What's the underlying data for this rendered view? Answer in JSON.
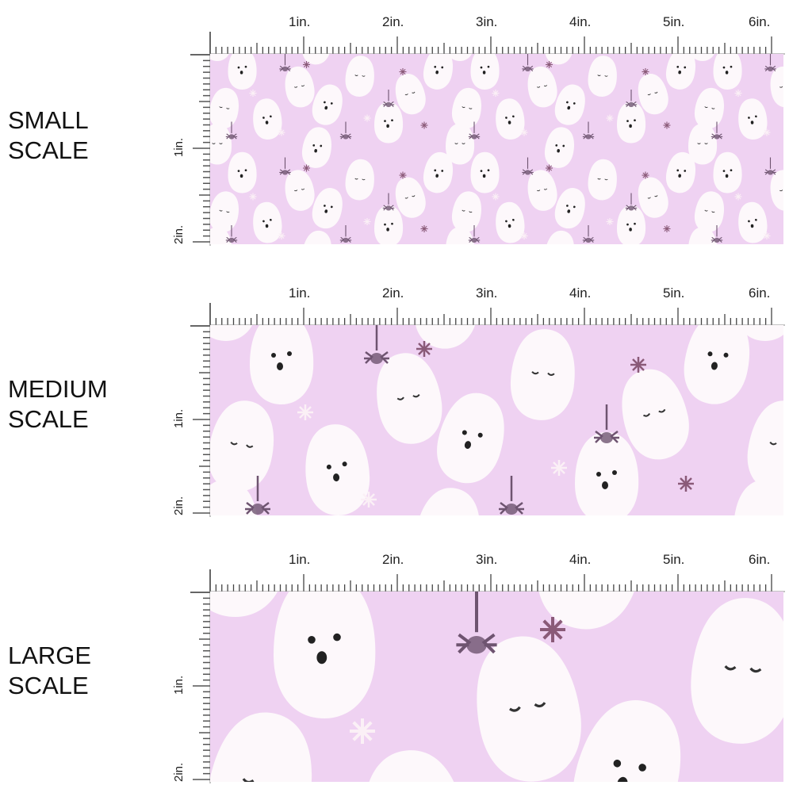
{
  "colors": {
    "fabric": "#efd2f2",
    "ghost": "#fdf8fb",
    "spider": "#6e5470",
    "star": "#fbf0f6",
    "accent_star": "#8a5a78"
  },
  "ruler": {
    "top_labels": [
      "1in.",
      "2in.",
      "3in.",
      "4in.",
      "5in.",
      "6in."
    ],
    "left_labels": [
      "1in.",
      "2in."
    ]
  },
  "panels": [
    {
      "label_line1": "SMALL",
      "label_line2": "SCALE",
      "scale": 0.45
    },
    {
      "label_line1": "MEDIUM",
      "label_line2": "SCALE",
      "scale": 1
    },
    {
      "label_line1": "LARGE",
      "label_line2": "SCALE",
      "scale": 1.6
    }
  ]
}
